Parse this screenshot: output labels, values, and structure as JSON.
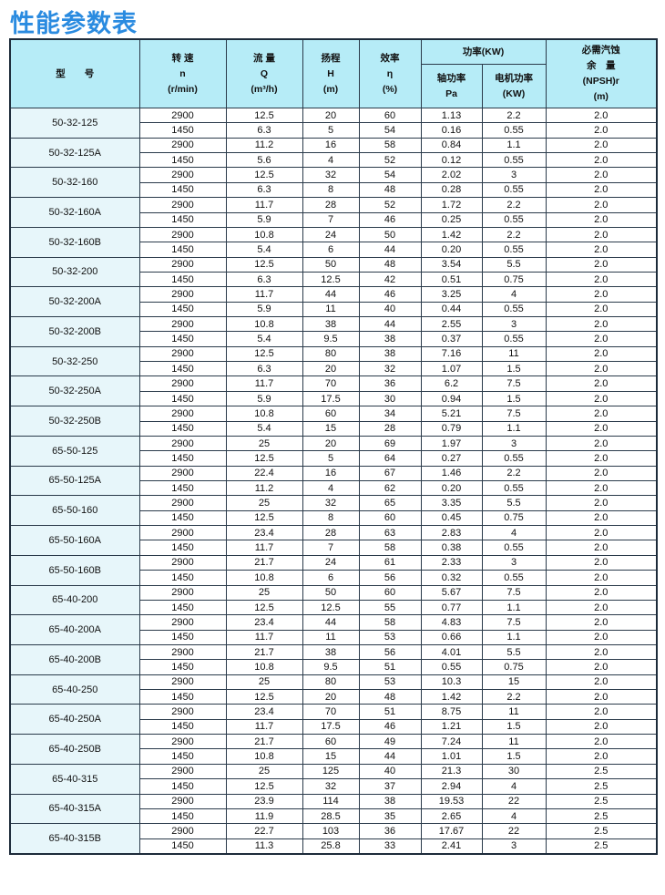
{
  "title": "性能参数表",
  "header": {
    "model": "型　　号",
    "speed": [
      "转 速",
      "n",
      "(r/min)"
    ],
    "flow": [
      "流 量",
      "Q",
      "(m³/h)"
    ],
    "head": [
      "扬程",
      "H",
      "(m)"
    ],
    "efficiency": [
      "效率",
      "η",
      "(%)"
    ],
    "power": "功率(KW)",
    "shaft_power": [
      "轴功率",
      "Pa"
    ],
    "motor_power": [
      "电机功率",
      "(KW)"
    ],
    "npsh": [
      "必需汽蚀",
      "余　量",
      "(NPSH)r",
      "(m)"
    ]
  },
  "models": [
    {
      "name": "50-32-125",
      "rows": [
        [
          "2900",
          "12.5",
          "20",
          "60",
          "1.13",
          "2.2",
          "2.0"
        ],
        [
          "1450",
          "6.3",
          "5",
          "54",
          "0.16",
          "0.55",
          "2.0"
        ]
      ]
    },
    {
      "name": "50-32-125A",
      "rows": [
        [
          "2900",
          "11.2",
          "16",
          "58",
          "0.84",
          "1.1",
          "2.0"
        ],
        [
          "1450",
          "5.6",
          "4",
          "52",
          "0.12",
          "0.55",
          "2.0"
        ]
      ]
    },
    {
      "name": "50-32-160",
      "rows": [
        [
          "2900",
          "12.5",
          "32",
          "54",
          "2.02",
          "3",
          "2.0"
        ],
        [
          "1450",
          "6.3",
          "8",
          "48",
          "0.28",
          "0.55",
          "2.0"
        ]
      ]
    },
    {
      "name": "50-32-160A",
      "rows": [
        [
          "2900",
          "11.7",
          "28",
          "52",
          "1.72",
          "2.2",
          "2.0"
        ],
        [
          "1450",
          "5.9",
          "7",
          "46",
          "0.25",
          "0.55",
          "2.0"
        ]
      ]
    },
    {
      "name": "50-32-160B",
      "rows": [
        [
          "2900",
          "10.8",
          "24",
          "50",
          "1.42",
          "2.2",
          "2.0"
        ],
        [
          "1450",
          "5.4",
          "6",
          "44",
          "0.20",
          "0.55",
          "2.0"
        ]
      ]
    },
    {
      "name": "50-32-200",
      "rows": [
        [
          "2900",
          "12.5",
          "50",
          "48",
          "3.54",
          "5.5",
          "2.0"
        ],
        [
          "1450",
          "6.3",
          "12.5",
          "42",
          "0.51",
          "0.75",
          "2.0"
        ]
      ]
    },
    {
      "name": "50-32-200A",
      "rows": [
        [
          "2900",
          "11.7",
          "44",
          "46",
          "3.25",
          "4",
          "2.0"
        ],
        [
          "1450",
          "5.9",
          "11",
          "40",
          "0.44",
          "0.55",
          "2.0"
        ]
      ]
    },
    {
      "name": "50-32-200B",
      "rows": [
        [
          "2900",
          "10.8",
          "38",
          "44",
          "2.55",
          "3",
          "2.0"
        ],
        [
          "1450",
          "5.4",
          "9.5",
          "38",
          "0.37",
          "0.55",
          "2.0"
        ]
      ]
    },
    {
      "name": "50-32-250",
      "rows": [
        [
          "2900",
          "12.5",
          "80",
          "38",
          "7.16",
          "11",
          "2.0"
        ],
        [
          "1450",
          "6.3",
          "20",
          "32",
          "1.07",
          "1.5",
          "2.0"
        ]
      ]
    },
    {
      "name": "50-32-250A",
      "rows": [
        [
          "2900",
          "11.7",
          "70",
          "36",
          "6.2",
          "7.5",
          "2.0"
        ],
        [
          "1450",
          "5.9",
          "17.5",
          "30",
          "0.94",
          "1.5",
          "2.0"
        ]
      ]
    },
    {
      "name": "50-32-250B",
      "rows": [
        [
          "2900",
          "10.8",
          "60",
          "34",
          "5.21",
          "7.5",
          "2.0"
        ],
        [
          "1450",
          "5.4",
          "15",
          "28",
          "0.79",
          "1.1",
          "2.0"
        ]
      ]
    },
    {
      "name": "65-50-125",
      "rows": [
        [
          "2900",
          "25",
          "20",
          "69",
          "1.97",
          "3",
          "2.0"
        ],
        [
          "1450",
          "12.5",
          "5",
          "64",
          "0.27",
          "0.55",
          "2.0"
        ]
      ]
    },
    {
      "name": "65-50-125A",
      "rows": [
        [
          "2900",
          "22.4",
          "16",
          "67",
          "1.46",
          "2.2",
          "2.0"
        ],
        [
          "1450",
          "11.2",
          "4",
          "62",
          "0.20",
          "0.55",
          "2.0"
        ]
      ]
    },
    {
      "name": "65-50-160",
      "rows": [
        [
          "2900",
          "25",
          "32",
          "65",
          "3.35",
          "5.5",
          "2.0"
        ],
        [
          "1450",
          "12.5",
          "8",
          "60",
          "0.45",
          "0.75",
          "2.0"
        ]
      ]
    },
    {
      "name": "65-50-160A",
      "rows": [
        [
          "2900",
          "23.4",
          "28",
          "63",
          "2.83",
          "4",
          "2.0"
        ],
        [
          "1450",
          "11.7",
          "7",
          "58",
          "0.38",
          "0.55",
          "2.0"
        ]
      ]
    },
    {
      "name": "65-50-160B",
      "rows": [
        [
          "2900",
          "21.7",
          "24",
          "61",
          "2.33",
          "3",
          "2.0"
        ],
        [
          "1450",
          "10.8",
          "6",
          "56",
          "0.32",
          "0.55",
          "2.0"
        ]
      ]
    },
    {
      "name": "65-40-200",
      "rows": [
        [
          "2900",
          "25",
          "50",
          "60",
          "5.67",
          "7.5",
          "2.0"
        ],
        [
          "1450",
          "12.5",
          "12.5",
          "55",
          "0.77",
          "1.1",
          "2.0"
        ]
      ]
    },
    {
      "name": "65-40-200A",
      "rows": [
        [
          "2900",
          "23.4",
          "44",
          "58",
          "4.83",
          "7.5",
          "2.0"
        ],
        [
          "1450",
          "11.7",
          "11",
          "53",
          "0.66",
          "1.1",
          "2.0"
        ]
      ]
    },
    {
      "name": "65-40-200B",
      "rows": [
        [
          "2900",
          "21.7",
          "38",
          "56",
          "4.01",
          "5.5",
          "2.0"
        ],
        [
          "1450",
          "10.8",
          "9.5",
          "51",
          "0.55",
          "0.75",
          "2.0"
        ]
      ]
    },
    {
      "name": "65-40-250",
      "rows": [
        [
          "2900",
          "25",
          "80",
          "53",
          "10.3",
          "15",
          "2.0"
        ],
        [
          "1450",
          "12.5",
          "20",
          "48",
          "1.42",
          "2.2",
          "2.0"
        ]
      ]
    },
    {
      "name": "65-40-250A",
      "rows": [
        [
          "2900",
          "23.4",
          "70",
          "51",
          "8.75",
          "11",
          "2.0"
        ],
        [
          "1450",
          "11.7",
          "17.5",
          "46",
          "1.21",
          "1.5",
          "2.0"
        ]
      ]
    },
    {
      "name": "65-40-250B",
      "rows": [
        [
          "2900",
          "21.7",
          "60",
          "49",
          "7.24",
          "11",
          "2.0"
        ],
        [
          "1450",
          "10.8",
          "15",
          "44",
          "1.01",
          "1.5",
          "2.0"
        ]
      ]
    },
    {
      "name": "65-40-315",
      "rows": [
        [
          "2900",
          "25",
          "125",
          "40",
          "21.3",
          "30",
          "2.5"
        ],
        [
          "1450",
          "12.5",
          "32",
          "37",
          "2.94",
          "4",
          "2.5"
        ]
      ]
    },
    {
      "name": "65-40-315A",
      "rows": [
        [
          "2900",
          "23.9",
          "114",
          "38",
          "19.53",
          "22",
          "2.5"
        ],
        [
          "1450",
          "11.9",
          "28.5",
          "35",
          "2.65",
          "4",
          "2.5"
        ]
      ]
    },
    {
      "name": "65-40-315B",
      "rows": [
        [
          "2900",
          "22.7",
          "103",
          "36",
          "17.67",
          "22",
          "2.5"
        ],
        [
          "1450",
          "11.3",
          "25.8",
          "33",
          "2.41",
          "3",
          "2.5"
        ]
      ]
    }
  ]
}
